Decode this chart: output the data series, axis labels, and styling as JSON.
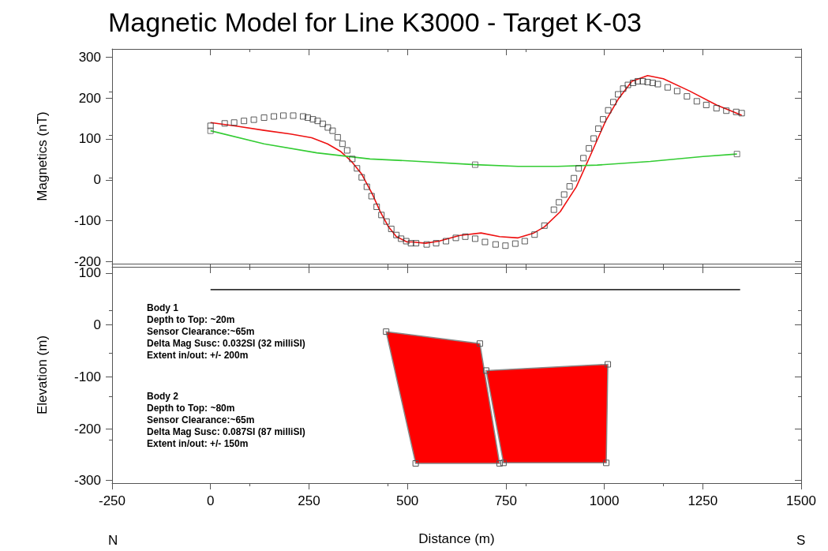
{
  "chart_data": [
    {
      "type": "line",
      "title": "Magnetic Model for Line K3000 - Target K-03",
      "ylabel": "Magnetics (nT)",
      "xlim": [
        -250,
        1500
      ],
      "xticks": [
        -250,
        0,
        250,
        500,
        750,
        1000,
        1250,
        1500
      ],
      "ylim": [
        -205,
        320
      ],
      "yticks": [
        -200,
        -100,
        0,
        100,
        200,
        300
      ],
      "tick_labels": "y",
      "series": [
        {
          "type": "scatter",
          "marker": "square",
          "color": "#333333",
          "x": [
            0,
            36,
            60,
            85,
            110,
            136,
            161,
            185,
            210,
            235,
            247,
            260,
            272,
            285,
            298,
            310,
            323,
            335,
            347,
            360,
            372,
            384,
            397,
            409,
            422,
            434,
            447,
            459,
            472,
            484,
            497,
            509,
            522,
            549,
            573,
            598,
            623,
            647,
            672,
            697,
            724,
            749,
            774,
            798,
            823,
            848,
            872,
            885,
            898,
            912,
            923,
            935,
            947,
            961,
            973,
            985,
            997,
            1010,
            1023,
            1035,
            1048,
            1060,
            1073,
            1085,
            1098,
            1110,
            1123,
            1136,
            1161,
            1185,
            1210,
            1235,
            1259,
            1285,
            1310,
            1335,
            1349
          ],
          "values": [
            132,
            138,
            140,
            144,
            147,
            152,
            155,
            157,
            157,
            155,
            152,
            148,
            144,
            137,
            128,
            120,
            104,
            88,
            72,
            51,
            28,
            6,
            -17,
            -40,
            -66,
            -86,
            -102,
            -120,
            -135,
            -144,
            -150,
            -155,
            -155,
            -158,
            -155,
            -150,
            -142,
            -139,
            -144,
            -152,
            -158,
            -161,
            -156,
            -150,
            -134,
            -112,
            -73,
            -55,
            -36,
            -16,
            4,
            28,
            53,
            77,
            101,
            125,
            148,
            170,
            190,
            209,
            223,
            232,
            237,
            241,
            241,
            239,
            237,
            234,
            226,
            217,
            204,
            192,
            183,
            175,
            169,
            166,
            163
          ]
        },
        {
          "marker": "none",
          "color": "#ee1111",
          "x": [
            0,
            69,
            136,
            203,
            257,
            297,
            331,
            358,
            384,
            411,
            431,
            452,
            472,
            499,
            512,
            546,
            580,
            633,
            687,
            734,
            781,
            821,
            848,
            888,
            929,
            969,
            1003,
            1036,
            1070,
            1110,
            1150,
            1217,
            1285,
            1349
          ],
          "values": [
            140,
            131,
            121,
            112,
            103,
            88,
            69,
            45,
            14,
            -35,
            -78,
            -115,
            -139,
            -152,
            -152,
            -155,
            -150,
            -136,
            -130,
            -139,
            -142,
            -130,
            -115,
            -78,
            -17,
            69,
            143,
            198,
            241,
            255,
            247,
            217,
            183,
            158
          ]
        },
        {
          "marker": "none",
          "color": "#33cc33",
          "x": [
            0,
            136,
            270,
            405,
            512,
            673,
            781,
            882,
            982,
            1117,
            1251,
            1337
          ],
          "values": [
            120,
            88,
            66,
            51,
            46,
            37,
            33,
            33,
            36,
            45,
            57,
            63
          ]
        },
        {
          "type": "scatter",
          "marker": "square",
          "color": "#555555",
          "x": [
            0,
            672,
            1337
          ],
          "values": [
            120,
            37,
            63
          ]
        }
      ]
    },
    {
      "type": "line",
      "ylabel": "Elevation (m)",
      "xlabel": "Distance (m)",
      "xlim": [
        -250,
        1500
      ],
      "xticks": [
        -250,
        0,
        250,
        500,
        750,
        1000,
        1250,
        1500
      ],
      "ylim": [
        -305,
        112
      ],
      "yticks": [
        -300,
        -200,
        -100,
        0,
        100
      ],
      "annotations": [
        "N",
        "S",
        "Body 1\nDepth to Top: ~20m\nSensor Clearance:~65m\nDelta Mag Susc: 0.032SI (32 milliSI)\nExtent in/out: +/- 200m",
        "Body 2\nDepth to Top: ~80m\nSensor Clearance:~65m\nDelta Mag Susc: 0.087SI (87 milliSI)\nExtent in/out: +/- 150m"
      ],
      "series": [
        {
          "marker": "none",
          "color": "#333333",
          "x": [
            0,
            1345
          ],
          "values": [
            68,
            68
          ]
        },
        {
          "type": "area",
          "marker": "square",
          "color": "#ff0000",
          "x": [
            446,
            684,
            734,
            521
          ],
          "values": [
            -13,
            -36,
            -267,
            -267
          ]
        },
        {
          "type": "area",
          "marker": "square",
          "color": "#ff0000",
          "x": [
            700,
            1009,
            1005,
            744
          ],
          "values": [
            -88,
            -76,
            -266,
            -266
          ]
        }
      ]
    }
  ]
}
